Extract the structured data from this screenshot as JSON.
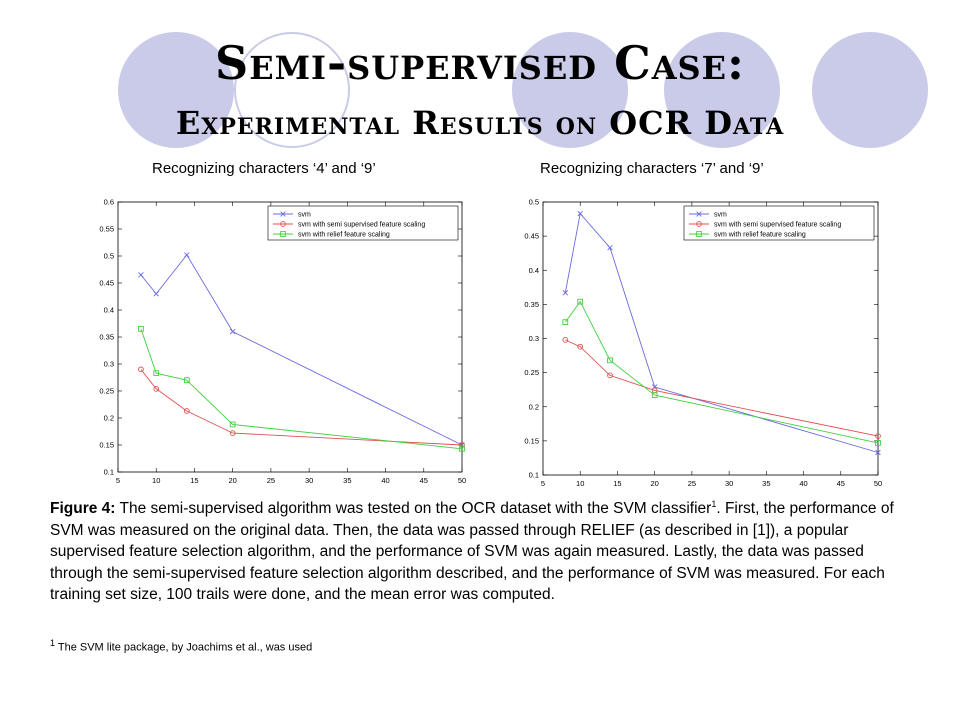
{
  "title_line1": "Semi-supervised Case:",
  "title_line2": "Experimental Results on OCR Data",
  "chart_data": [
    {
      "type": "line",
      "title": "Recognizing characters ‘4’ and ‘9’",
      "xlabel": "",
      "ylabel": "",
      "xlim": [
        5,
        50
      ],
      "ylim": [
        0.1,
        0.6
      ],
      "xticks": [
        5,
        10,
        15,
        20,
        25,
        30,
        35,
        40,
        45,
        50
      ],
      "yticks": [
        0.1,
        0.15,
        0.2,
        0.25,
        0.3,
        0.35,
        0.4,
        0.45,
        0.5,
        0.55,
        0.6
      ],
      "grid": false,
      "legend": "top-right",
      "x": [
        8,
        10,
        14,
        20,
        50
      ],
      "series": [
        {
          "name": "svm",
          "marker": "x",
          "color": "#6a6ae0",
          "values": [
            0.465,
            0.43,
            0.502,
            0.36,
            0.15
          ]
        },
        {
          "name": "svm with semi supervised feature scaling",
          "marker": "o",
          "color": "#e05050",
          "values": [
            0.29,
            0.254,
            0.213,
            0.172,
            0.15
          ]
        },
        {
          "name": "svm with relief feature scaling",
          "marker": "s",
          "color": "#40d040",
          "values": [
            0.365,
            0.283,
            0.27,
            0.188,
            0.143
          ]
        }
      ]
    },
    {
      "type": "line",
      "title": "Recognizing characters ‘7’ and ‘9’",
      "xlabel": "",
      "ylabel": "",
      "xlim": [
        5,
        50
      ],
      "ylim": [
        0.1,
        0.5
      ],
      "xticks": [
        5,
        10,
        15,
        20,
        25,
        30,
        35,
        40,
        45,
        50
      ],
      "yticks": [
        0.1,
        0.15,
        0.2,
        0.25,
        0.3,
        0.35,
        0.4,
        0.45,
        0.5
      ],
      "grid": false,
      "legend": "top-right",
      "x": [
        8,
        10,
        14,
        20,
        50
      ],
      "series": [
        {
          "name": "svm",
          "marker": "x",
          "color": "#6a6ae0",
          "values": [
            0.367,
            0.483,
            0.433,
            0.229,
            0.133
          ]
        },
        {
          "name": "svm with semi supervised feature scaling",
          "marker": "o",
          "color": "#e05050",
          "values": [
            0.298,
            0.288,
            0.246,
            0.224,
            0.157
          ]
        },
        {
          "name": "svm with relief feature scaling",
          "marker": "s",
          "color": "#40d040",
          "values": [
            0.324,
            0.354,
            0.268,
            0.217,
            0.147
          ]
        }
      ]
    }
  ],
  "caption": {
    "label": "Figure 4:",
    "text1": " The semi-supervised algorithm was tested on the OCR dataset with the SVM classifier",
    "sup": "1",
    "text2": ".  First, the performance of SVM was measured on the original data.  Then, the data was passed through RELIEF (as described in [1]), a popular supervised feature selection algorithm, and the performance of SVM was again measured.  Lastly, the data was passed through the semi-supervised feature selection algorithm described, and the performance of SVM was measured.  For each training set size, 100 trails were done, and the mean error was computed."
  },
  "footnote": {
    "sup": "1",
    "text": " The SVM lite package, by Joachims et al., was used"
  },
  "colors": {
    "decor_circles": "#c9cbe8"
  }
}
